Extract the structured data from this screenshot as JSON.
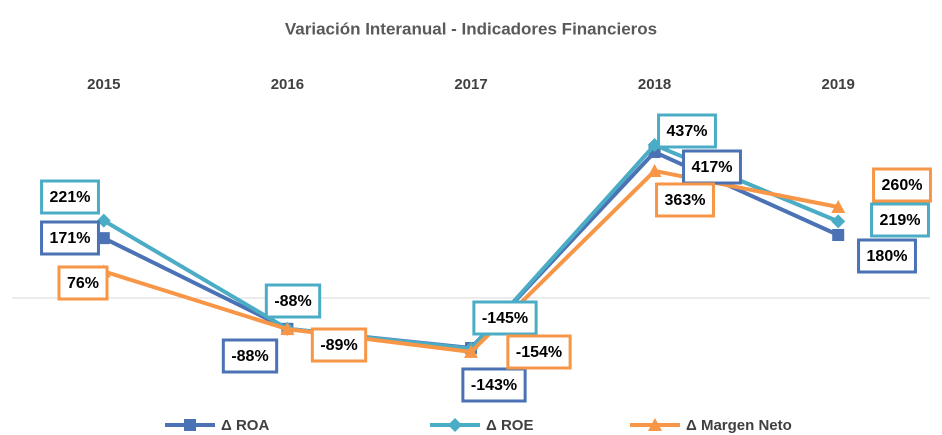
{
  "chart_data": {
    "type": "line",
    "title": "Variación Interanual - Indicadores Financieros",
    "categories": [
      "2015",
      "2016",
      "2017",
      "2018",
      "2019"
    ],
    "ylim": [
      -200,
      500
    ],
    "series": [
      {
        "name": "Δ ROA",
        "color": "#4a72b5",
        "marker": "square",
        "values": [
          171,
          -88,
          -143,
          417,
          180
        ],
        "value_labels": [
          "171%",
          "-88%",
          "-143%",
          "417%",
          "180%"
        ]
      },
      {
        "name": "Δ ROE",
        "color": "#4bacc6",
        "marker": "diamond",
        "values": [
          221,
          -88,
          -145,
          437,
          219
        ],
        "value_labels": [
          "221%",
          "-88%",
          "-145%",
          "437%",
          "219%"
        ]
      },
      {
        "name": "Δ Margen Neto",
        "color": "#f79646",
        "marker": "triangle",
        "values": [
          76,
          -89,
          -154,
          363,
          260
        ],
        "value_labels": [
          "76%",
          "-89%",
          "-154%",
          "363%",
          "260%"
        ]
      }
    ]
  }
}
